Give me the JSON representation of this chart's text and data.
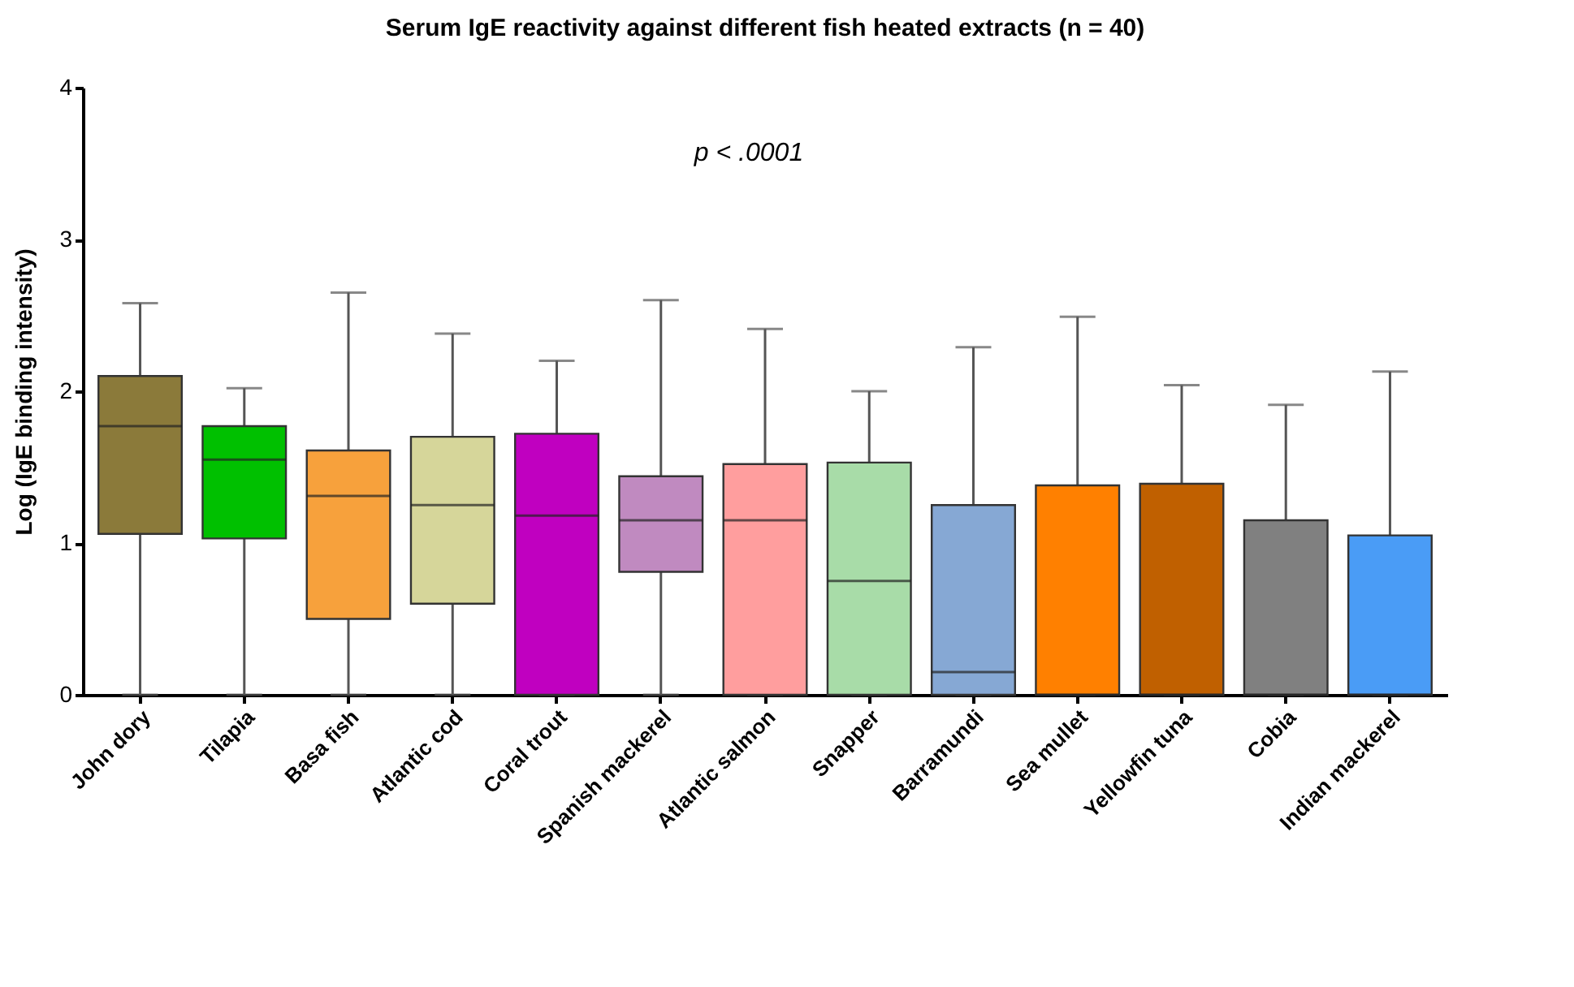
{
  "chart_data": {
    "type": "box",
    "title": "Serum IgE reactivity against different fish heated extracts (n = 40)",
    "ylabel": "Log (IgE binding intensity)",
    "categories": [
      "John dory",
      "Tilapia",
      "Basa fish",
      "Atlantic cod",
      "Coral trout",
      "Spanish mackerel",
      "Atlantic salmon",
      "Snapper",
      "Barramundi",
      "Sea mullet",
      "Yellowfin tuna",
      "Cobia",
      "Indian mackerel"
    ],
    "boxes": [
      {
        "low": 0,
        "q1": 1.06,
        "median": 1.77,
        "q3": 2.1,
        "high": 2.58
      },
      {
        "low": 0,
        "q1": 1.03,
        "median": 1.55,
        "q3": 1.77,
        "high": 2.02
      },
      {
        "low": 0,
        "q1": 0.5,
        "median": 1.31,
        "q3": 1.61,
        "high": 2.65
      },
      {
        "low": 0,
        "q1": 0.6,
        "median": 1.25,
        "q3": 1.7,
        "high": 2.38
      },
      {
        "low": 0,
        "q1": 0,
        "median": 1.18,
        "q3": 1.72,
        "high": 2.2
      },
      {
        "low": 0,
        "q1": 0.81,
        "median": 1.15,
        "q3": 1.44,
        "high": 2.6
      },
      {
        "low": 0,
        "q1": 0,
        "median": 1.15,
        "q3": 1.52,
        "high": 2.41
      },
      {
        "low": 0,
        "q1": 0,
        "median": 0.75,
        "q3": 1.53,
        "high": 2.0
      },
      {
        "low": 0,
        "q1": 0,
        "median": 0.15,
        "q3": 1.25,
        "high": 2.29
      },
      {
        "low": 0,
        "q1": 0,
        "median": 0,
        "q3": 1.38,
        "high": 2.49
      },
      {
        "low": 0,
        "q1": 0,
        "median": 0,
        "q3": 1.39,
        "high": 2.04
      },
      {
        "low": 0,
        "q1": 0,
        "median": 0,
        "q3": 1.15,
        "high": 1.91
      },
      {
        "low": 0,
        "q1": 0,
        "median": 0,
        "q3": 1.05,
        "high": 2.13
      }
    ],
    "colors": [
      "#8b7a3a",
      "#00c000",
      "#f7a13c",
      "#d6d69a",
      "#c000c0",
      "#c08ac0",
      "#ff9e9e",
      "#a8dca8",
      "#86a8d4",
      "#ff8000",
      "#c06000",
      "#808080",
      "#4a9cf6"
    ],
    "ylim": [
      0,
      4
    ],
    "yticks": [
      0,
      1,
      2,
      3,
      4
    ],
    "annotations": [
      "p < .0001"
    ]
  }
}
